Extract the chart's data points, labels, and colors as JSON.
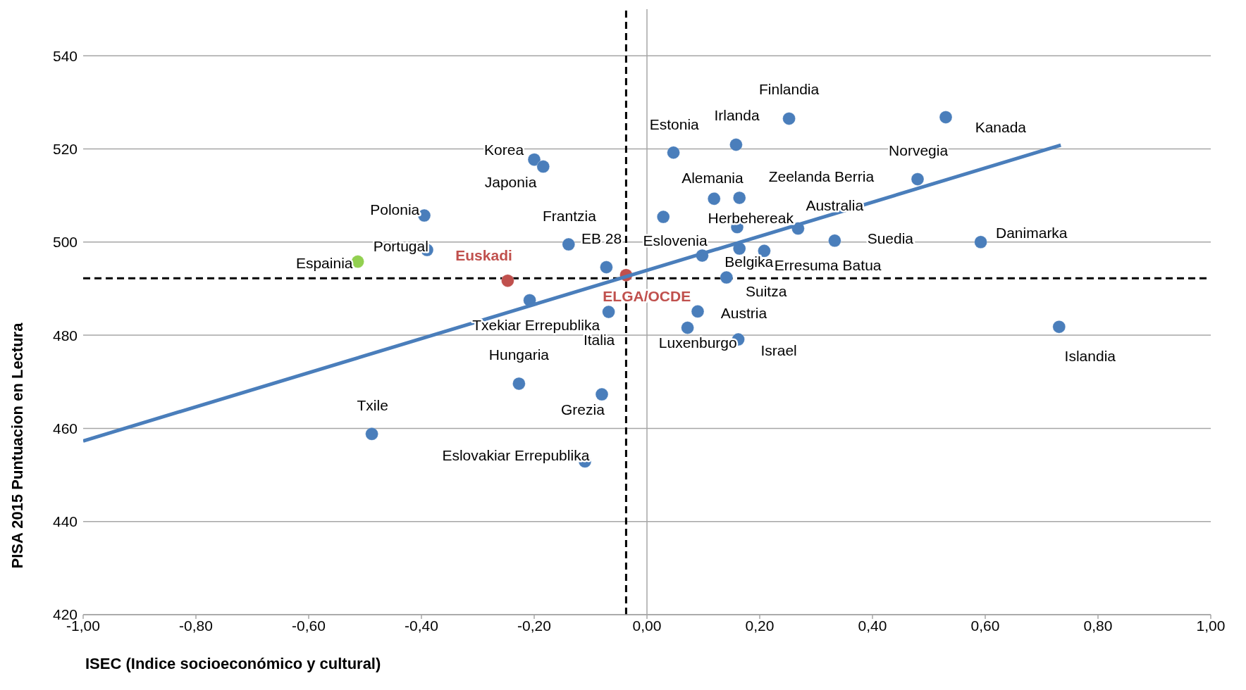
{
  "chart_data": {
    "type": "scatter",
    "xlabel": "ISEC  (Indice socioeconómico y cultural)",
    "ylabel": "PISA 2015  Puntuacion en Lectura",
    "xlim": [
      -1,
      1
    ],
    "xticks": [
      {
        "value": -1,
        "label": "-1,00"
      },
      {
        "value": -0.8,
        "label": "-0,80"
      },
      {
        "value": -0.6,
        "label": "-0,60"
      },
      {
        "value": -0.4,
        "label": "-0,40"
      },
      {
        "value": -0.2,
        "label": "-0,20"
      },
      {
        "value": 0,
        "label": "0,00"
      },
      {
        "value": 0.2,
        "label": "0,20"
      },
      {
        "value": 0.4,
        "label": "0,40"
      },
      {
        "value": 0.6,
        "label": "0,60"
      },
      {
        "value": 0.8,
        "label": "0,80"
      },
      {
        "value": 1,
        "label": "1,00"
      }
    ],
    "ylim": [
      420,
      550
    ],
    "yticks": [
      420,
      440,
      460,
      480,
      500,
      520,
      540
    ],
    "grid": "y",
    "legend": false,
    "marker": "circle",
    "series": [
      {
        "color": "#4a7ebb",
        "x": [
          0.252,
          0.53,
          0.158,
          0.047,
          -0.2,
          -0.184,
          0.48,
          0.119,
          0.164,
          -0.395,
          0.029,
          -0.139,
          -0.072,
          0.16,
          0.268,
          0.333,
          0.592,
          0.164,
          0.208,
          -0.39,
          0.141,
          -0.208,
          0.09,
          -0.068,
          0.072,
          0.162,
          0.731,
          -0.227,
          -0.08,
          -0.488,
          -0.11,
          0.098
        ],
        "values": [
          526.5,
          526.8,
          520.9,
          519.2,
          517.7,
          516.2,
          513.5,
          509.3,
          509.5,
          505.7,
          505.4,
          499.5,
          494.6,
          503.2,
          502.9,
          500.3,
          500,
          498.6,
          498.1,
          498.3,
          492.4,
          487.5,
          485.1,
          485,
          481.6,
          479.1,
          481.8,
          469.6,
          467.3,
          458.8,
          452.9,
          497.1
        ],
        "value_labels": [
          "Finlandia",
          "Kanada",
          "Irlanda",
          "Estonia",
          "Korea",
          "Japonia",
          "Norvegia",
          "Alemania",
          "Zeelanda Berria",
          "Polonia",
          "Eslovenia",
          "Frantzia",
          "EB 28",
          "Herbehereak",
          "Australia",
          "Suedia",
          "Danimarka",
          "Belgika",
          "Erresuma Batua",
          "Portugal",
          "Suitza",
          "Txekiar Errepublika",
          "Austria",
          "Italia",
          "Luxenburgo",
          "Israel",
          "Islandia",
          "Hungaria",
          "Grezia",
          "Txile",
          "Eslovakiar Errepublika",
          null
        ]
      },
      {
        "color": "#92d050",
        "x": [
          -0.513
        ],
        "values": [
          495.8
        ],
        "value_labels": [
          "Espainia"
        ]
      },
      {
        "color": "#c0504d",
        "x": [
          -0.247,
          -0.037
        ],
        "values": [
          491.7,
          492.9
        ],
        "value_labels": [
          "Euskadi",
          "ELGA/OCDE"
        ]
      },
      {
        "type": "line",
        "color": "#4a7ebb",
        "x": [
          -1,
          0.734
        ],
        "values": [
          457.3,
          520.8
        ],
        "marker": "none"
      }
    ],
    "ref_lines": [
      {
        "axis": "x",
        "value": 0,
        "color": "#a6a6a6",
        "line_style": "solid"
      },
      {
        "axis": "x",
        "value": -0.037,
        "color": "#000000",
        "line_style": "dashed"
      },
      {
        "axis": "y",
        "value": 492.2,
        "color": "#000000",
        "line_style": "dashed"
      }
    ]
  }
}
